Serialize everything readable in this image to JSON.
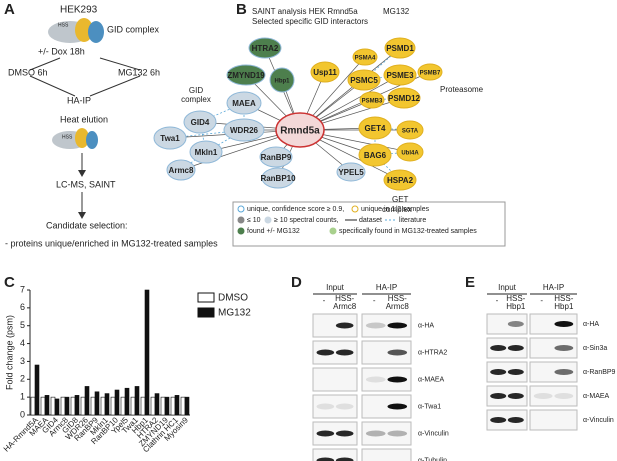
{
  "panel_a": {
    "label": "A",
    "cell": "HEK293",
    "complex": "GID complex",
    "hss": "HSS",
    "dox": "+/- Dox 18h",
    "dmso": "DMSO 6h",
    "mg132": "MG132 6h",
    "ip": "HA-IP",
    "elution": "Heat elution",
    "hss2": "HSS",
    "ms": "LC-MS, SAINT",
    "selection": "Candidate selection:",
    "criterion": "- proteins unique/enriched in MG132-treated samples"
  },
  "panel_b": {
    "label": "B",
    "title": "SAINT analysis HEK Rmnd5a ",
    "title_mg": "MG132",
    "subtitle": "Selected specific GID interactors",
    "group_gid": [
      "GID",
      "complex"
    ],
    "group_proteasome": "Proteasome",
    "group_get": [
      "GET",
      "complex"
    ],
    "nodes": [
      "Rmnd5a",
      "HTRA2",
      "ZMYND19",
      "Hbp1",
      "Usp11",
      "PSMD1",
      "PSMA4",
      "PSMC5",
      "PSME3",
      "PSMB7",
      "PSMB3",
      "PSMD12",
      "GET4",
      "SGTA",
      "BAG6",
      "Ubl4A",
      "HSPA2",
      "YPEL5",
      "MAEA",
      "GID4",
      "WDR26",
      "Twa1",
      "Mkln1",
      "RanBP9",
      "Armc8",
      "RanBP10"
    ],
    "legend": [
      "unique, confidence score  ≥ 0.9,",
      "unique in 1/2 samples",
      "≤ 10",
      "≥ 10 spectral counts,",
      "dataset",
      "literature",
      "found +/- MG132",
      "specifically found in MG132-treated samples"
    ]
  },
  "chart_data": {
    "type": "bar",
    "label": "C",
    "ylabel": "Fold change (psm)",
    "categories": [
      "HA-Rmnd5A",
      "MAEA",
      "GID4",
      "Armc8",
      "GID8",
      "WDR26",
      "RanBP9",
      "Mkln1",
      "RanBP10",
      "Ypel5",
      "Twa1",
      "Hbp1",
      "HTRA2",
      "ZMYND19",
      "Clathrin HC1",
      "Myosin9"
    ],
    "series": [
      {
        "name": "DMSO",
        "color": "#ffffff",
        "values": [
          1,
          1,
          1,
          1,
          1,
          1,
          1,
          1,
          1,
          1,
          1,
          1,
          1,
          1,
          1,
          1
        ]
      },
      {
        "name": "MG132",
        "color": "#111111",
        "values": [
          2.8,
          1.1,
          0.9,
          1.0,
          1.1,
          1.6,
          1.3,
          1.2,
          1.4,
          1.5,
          1.6,
          7.0,
          1.2,
          1.0,
          1.1,
          1.0
        ]
      }
    ],
    "ylim": [
      0,
      7
    ],
    "yticks": [
      0,
      1,
      2,
      3,
      4,
      5,
      6,
      7
    ],
    "legend": "upper right"
  },
  "panel_d": {
    "label": "D",
    "input": "Input",
    "ip": "HA-IP",
    "lanes": [
      "-",
      "HSS-",
      "Armc8",
      "-",
      "HSS-",
      "Armc8"
    ],
    "antibodies": [
      "α-HA",
      "α-HTRA2",
      "α-MAEA",
      "α-Twa1",
      "α-Vinculin",
      "α-Tubulin"
    ]
  },
  "panel_e": {
    "label": "E",
    "input": "Input",
    "ip": "HA-IP",
    "lanes": [
      "-",
      "HSS-",
      "Hbp1",
      "-",
      "HSS-",
      "Hbp1"
    ],
    "antibodies": [
      "α-HA",
      "α-Sin3a",
      "α-RanBP9",
      "α-MAEA",
      "α-Vinculin"
    ]
  }
}
